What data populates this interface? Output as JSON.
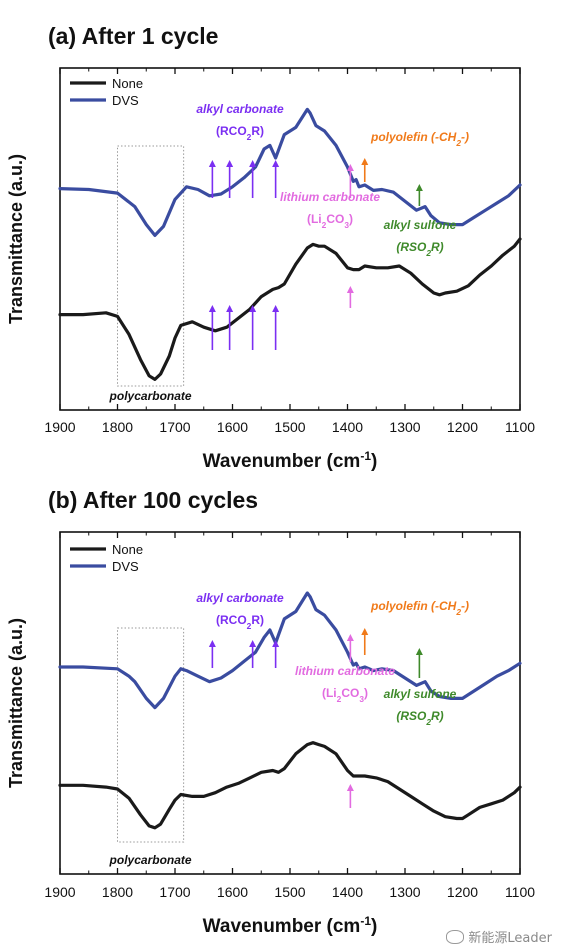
{
  "panels": [
    {
      "title": "(a) After 1 cycle",
      "xlabel": "Wavenumber (cm",
      "xlabel_sup": "-1",
      "xlabel_end": ")",
      "ylabel": "Transmittance (a.u.)",
      "box_label": "polycarbonate",
      "legend": [
        {
          "name": "None",
          "color": "#1a1a1a"
        },
        {
          "name": "DVS",
          "color": "#3a4ca0"
        }
      ],
      "annotations": [
        {
          "lines": [
            "alkyl carbonate",
            "(RCO2R)"
          ],
          "color": "#7b2ff2"
        },
        {
          "lines": [
            "polyolefin (-CH2-)"
          ],
          "color": "#f07a1a"
        },
        {
          "lines": [
            "lithium carbonate",
            "(Li2CO3)"
          ],
          "color": "#e26be0"
        },
        {
          "lines": [
            "alkyl sulfone",
            "(RSO2R)"
          ],
          "color": "#3f8a2b"
        }
      ]
    },
    {
      "title": "(b) After 100 cycles",
      "xlabel": "Wavenumber (cm",
      "xlabel_sup": "-1",
      "xlabel_end": ")",
      "ylabel": "Transmittance (a.u.)",
      "box_label": "polycarbonate",
      "legend": [
        {
          "name": "None",
          "color": "#1a1a1a"
        },
        {
          "name": "DVS",
          "color": "#3a4ca0"
        }
      ],
      "annotations": [
        {
          "lines": [
            "alkyl carbonate",
            "(RCO2R)"
          ],
          "color": "#7b2ff2"
        },
        {
          "lines": [
            "polyolefin (-CH2-)"
          ],
          "color": "#f07a1a"
        },
        {
          "lines": [
            "lithium carbonate",
            "(Li2CO3)"
          ],
          "color": "#e26be0"
        },
        {
          "lines": [
            "alkyl sulfone",
            "(RSO2R)"
          ],
          "color": "#3f8a2b"
        }
      ]
    }
  ],
  "watermark": "新能源Leader",
  "chart_data": [
    {
      "type": "line",
      "title": "(a) After 1 cycle",
      "xlabel": "Wavenumber (cm-1)",
      "ylabel": "Transmittance (a.u.)",
      "xlim": [
        1900,
        1100
      ],
      "xticks": [
        1900,
        1800,
        1700,
        1600,
        1500,
        1400,
        1300,
        1200,
        1100
      ],
      "legend_position": "top-left",
      "grid": false,
      "series": [
        {
          "name": "DVS",
          "color": "#3a4ca0",
          "x": [
            1900,
            1850,
            1800,
            1770,
            1750,
            1735,
            1720,
            1700,
            1680,
            1660,
            1640,
            1620,
            1600,
            1580,
            1560,
            1545,
            1535,
            1525,
            1510,
            1490,
            1470,
            1465,
            1455,
            1440,
            1420,
            1400,
            1390,
            1385,
            1380,
            1370,
            1355,
            1340,
            1320,
            1300,
            1280,
            1265,
            1255,
            1240,
            1220,
            1200,
            1180,
            1160,
            1140,
            1120,
            1100
          ],
          "y": [
            0.98,
            0.975,
            0.955,
            0.88,
            0.78,
            0.72,
            0.77,
            0.92,
            0.99,
            0.975,
            0.94,
            0.95,
            0.99,
            1.04,
            1.1,
            1.2,
            1.22,
            1.15,
            1.28,
            1.32,
            1.42,
            1.4,
            1.33,
            1.3,
            1.22,
            1.1,
            1.02,
            1.03,
            0.99,
            1.0,
            0.97,
            0.975,
            0.96,
            0.91,
            0.86,
            0.88,
            0.83,
            0.79,
            0.78,
            0.78,
            0.82,
            0.86,
            0.9,
            0.94,
            1.0
          ]
        },
        {
          "name": "None",
          "color": "#1a1a1a",
          "x": [
            1900,
            1860,
            1820,
            1800,
            1780,
            1760,
            1745,
            1735,
            1725,
            1710,
            1700,
            1690,
            1670,
            1650,
            1630,
            1610,
            1590,
            1570,
            1550,
            1530,
            1520,
            1510,
            1490,
            1470,
            1460,
            1450,
            1440,
            1420,
            1400,
            1390,
            1380,
            1370,
            1350,
            1330,
            1310,
            1290,
            1270,
            1250,
            1240,
            1230,
            1210,
            1190,
            1170,
            1150,
            1130,
            1110,
            1100
          ],
          "y": [
            0.28,
            0.28,
            0.29,
            0.27,
            0.17,
            0.03,
            -0.06,
            -0.08,
            -0.05,
            0.05,
            0.15,
            0.22,
            0.24,
            0.21,
            0.19,
            0.21,
            0.26,
            0.31,
            0.38,
            0.42,
            0.43,
            0.45,
            0.56,
            0.65,
            0.67,
            0.66,
            0.66,
            0.62,
            0.54,
            0.53,
            0.53,
            0.55,
            0.54,
            0.54,
            0.55,
            0.51,
            0.45,
            0.4,
            0.39,
            0.4,
            0.41,
            0.44,
            0.5,
            0.55,
            0.61,
            0.66,
            0.7
          ]
        }
      ]
    },
    {
      "type": "line",
      "title": "(b) After 100 cycles",
      "xlabel": "Wavenumber (cm-1)",
      "ylabel": "Transmittance (a.u.)",
      "xlim": [
        1900,
        1100
      ],
      "xticks": [
        1900,
        1800,
        1700,
        1600,
        1500,
        1400,
        1300,
        1200,
        1100
      ],
      "legend_position": "top-left",
      "grid": false,
      "series": [
        {
          "name": "DVS",
          "color": "#3a4ca0",
          "x": [
            1900,
            1860,
            1800,
            1780,
            1770,
            1750,
            1735,
            1720,
            1700,
            1690,
            1680,
            1660,
            1640,
            1620,
            1600,
            1580,
            1560,
            1545,
            1535,
            1525,
            1510,
            1490,
            1470,
            1465,
            1455,
            1440,
            1420,
            1400,
            1390,
            1385,
            1380,
            1370,
            1355,
            1340,
            1320,
            1300,
            1280,
            1265,
            1255,
            1240,
            1220,
            1200,
            1180,
            1160,
            1140,
            1120,
            1100
          ],
          "y": [
            0.97,
            0.97,
            0.96,
            0.92,
            0.89,
            0.8,
            0.75,
            0.8,
            0.92,
            0.96,
            0.95,
            0.92,
            0.89,
            0.91,
            0.95,
            1.0,
            1.05,
            1.13,
            1.17,
            1.1,
            1.23,
            1.27,
            1.37,
            1.35,
            1.28,
            1.25,
            1.17,
            1.05,
            0.98,
            0.99,
            0.96,
            0.97,
            0.95,
            0.96,
            0.95,
            0.91,
            0.87,
            0.89,
            0.84,
            0.81,
            0.8,
            0.8,
            0.84,
            0.88,
            0.92,
            0.95,
            0.99
          ]
        },
        {
          "name": "None",
          "color": "#1a1a1a",
          "x": [
            1900,
            1860,
            1820,
            1800,
            1780,
            1760,
            1745,
            1735,
            1725,
            1710,
            1700,
            1690,
            1670,
            1650,
            1630,
            1610,
            1590,
            1570,
            1550,
            1530,
            1520,
            1510,
            1490,
            1470,
            1460,
            1450,
            1440,
            1420,
            1400,
            1390,
            1380,
            1370,
            1350,
            1330,
            1310,
            1290,
            1270,
            1250,
            1230,
            1210,
            1200,
            1190,
            1170,
            1150,
            1130,
            1110,
            1100
          ],
          "y": [
            0.33,
            0.33,
            0.32,
            0.31,
            0.26,
            0.17,
            0.11,
            0.1,
            0.12,
            0.2,
            0.25,
            0.28,
            0.27,
            0.27,
            0.29,
            0.32,
            0.34,
            0.37,
            0.4,
            0.41,
            0.4,
            0.42,
            0.5,
            0.55,
            0.56,
            0.55,
            0.54,
            0.5,
            0.41,
            0.38,
            0.38,
            0.38,
            0.37,
            0.35,
            0.31,
            0.27,
            0.23,
            0.19,
            0.16,
            0.15,
            0.15,
            0.17,
            0.21,
            0.23,
            0.25,
            0.29,
            0.32
          ]
        }
      ]
    }
  ]
}
